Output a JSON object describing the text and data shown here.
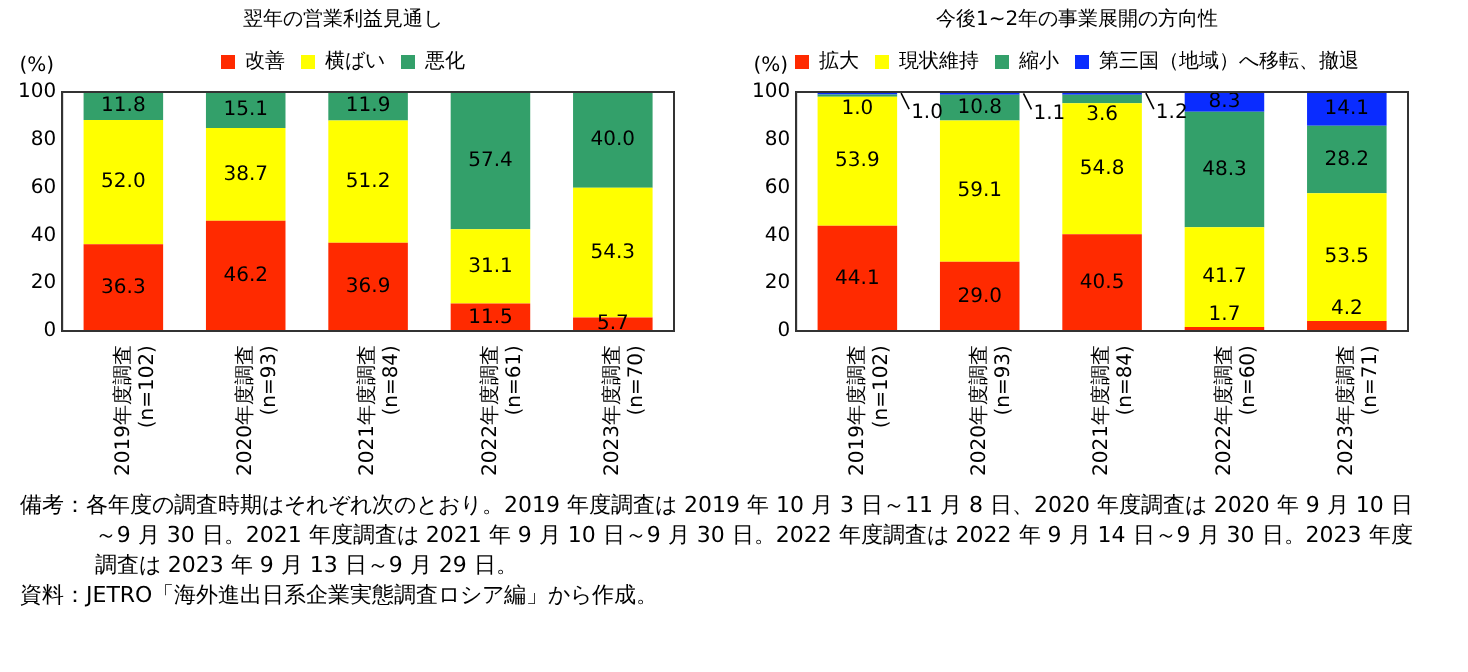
{
  "chart_data": [
    {
      "type": "bar",
      "stacked": true,
      "title": "翌年の営業利益見通し",
      "ylabel": "(%)",
      "legend": "top",
      "ylim": [
        0,
        100
      ],
      "yticks": [
        0,
        20,
        40,
        60,
        80,
        100
      ],
      "grid": false,
      "categories": [
        "2019年度調査\n(n=102)",
        "2020年度調査\n(n=93)",
        "2021年度調査\n(n=84)",
        "2022年度調査\n(n=61)",
        "2023年度調査\n(n=70)"
      ],
      "series": [
        {
          "name": "改善",
          "color": "#ff2a00",
          "values": [
            36.3,
            46.2,
            36.9,
            11.5,
            5.7
          ],
          "value_labels": [
            "36.3",
            "46.2",
            "36.9",
            "11.5",
            "5.7"
          ]
        },
        {
          "name": "横ばい",
          "color": "#ffff00",
          "values": [
            52.0,
            38.7,
            51.2,
            31.1,
            54.3
          ],
          "value_labels": [
            "52.0",
            "38.7",
            "51.2",
            "31.1",
            "54.3"
          ]
        },
        {
          "name": "悪化",
          "color": "#33a06a",
          "values": [
            11.8,
            15.1,
            11.9,
            57.4,
            40.0
          ],
          "value_labels": [
            "11.8",
            "15.1",
            "11.9",
            "57.4",
            "40.0"
          ]
        }
      ]
    },
    {
      "type": "bar",
      "stacked": true,
      "title": "今後1~2年の事業展開の方向性",
      "ylabel": "(%)",
      "legend": "top",
      "ylim": [
        0,
        100
      ],
      "yticks": [
        0,
        20,
        40,
        60,
        80,
        100
      ],
      "grid": false,
      "categories": [
        "2019年度調査\n(n=102)",
        "2020年度調査\n(n=93)",
        "2021年度調査\n(n=84)",
        "2022年度調査\n(n=60)",
        "2023年度調査\n(n=71)"
      ],
      "series": [
        {
          "name": "拡大",
          "color": "#ff2a00",
          "values": [
            44.1,
            29.0,
            40.5,
            1.7,
            4.2
          ],
          "value_labels": [
            "44.1",
            "29.0",
            "40.5",
            "1.7",
            "4.2"
          ]
        },
        {
          "name": "現状維持",
          "color": "#ffff00",
          "values": [
            53.9,
            59.1,
            54.8,
            41.7,
            53.5
          ],
          "value_labels": [
            "53.9",
            "59.1",
            "54.8",
            "41.7",
            "53.5"
          ]
        },
        {
          "name": "縮小",
          "color": "#33a06a",
          "values": [
            1.0,
            10.8,
            3.6,
            48.3,
            28.2
          ],
          "value_labels": [
            "1.0",
            "10.8",
            "3.6",
            "48.3",
            "28.2"
          ]
        },
        {
          "name": "第三国（地域）へ移転、撤退",
          "color": "#0a2cff",
          "values": [
            1.0,
            1.1,
            1.2,
            8.3,
            14.1
          ],
          "value_labels": [
            "1.0",
            "1.1",
            "1.2",
            "8.3",
            "14.1"
          ]
        }
      ]
    },
    {
      "type": "other",
      "annotations": [
        "備考：各年度の調査時期はそれぞれ次のとおり。2019 年度調査は 2019 年 10 月 3 日～11 月 8 日、2020 年度調査は 2020 年 9 月 10 日～9 月 30 日。2021 年度調査は 2021 年 9 月 10 日～9 月 30 日。2022 年度調査は 2022 年 9 月 14 日～9 月 30 日。2023 年度調査は 2023 年 9 月 13 日～9 月 29 日。",
        "資料：JETRO「海外進出日系企業実態調査ロシア編」から作成。"
      ]
    }
  ]
}
